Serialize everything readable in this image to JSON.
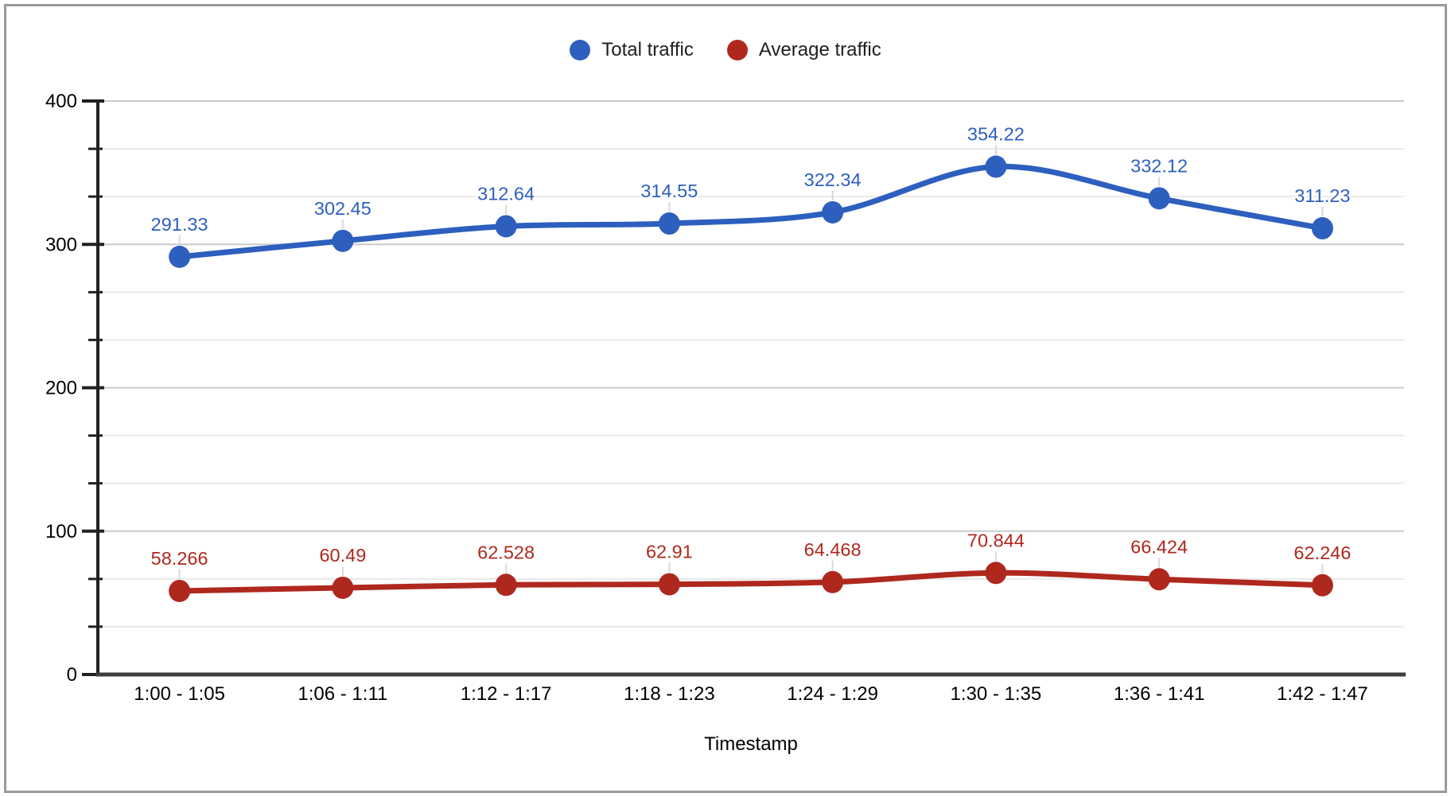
{
  "window": {
    "background": "#ffffff",
    "frame_border_color": "#9a9a9a"
  },
  "chart_data": {
    "type": "line",
    "smooth": true,
    "title": "",
    "xlabel": "Timestamp",
    "ylabel": "",
    "ylim": [
      0,
      400
    ],
    "yticks": [
      0,
      100,
      200,
      300,
      400
    ],
    "minor_gridlines_per_major": 3,
    "grid": true,
    "legend_position": "top",
    "categories": [
      "1:00 - 1:05",
      "1:06 - 1:11",
      "1:12 - 1:17",
      "1:18 - 1:23",
      "1:24 - 1:29",
      "1:30 - 1:35",
      "1:36 - 1:41",
      "1:42 - 1:47"
    ],
    "series": [
      {
        "name": "Total traffic",
        "color": "#2D5FBE",
        "values": [
          291.33,
          302.45,
          312.64,
          314.55,
          322.34,
          354.22,
          332.12,
          311.23
        ],
        "point_labels": [
          "291.33",
          "302.45",
          "312.64",
          "314.55",
          "322.34",
          "354.22",
          "332.12",
          "311.23"
        ]
      },
      {
        "name": "Average traffic",
        "color": "#AF281E",
        "values": [
          58.266,
          60.49,
          62.528,
          62.91,
          64.468,
          70.844,
          66.424,
          62.246
        ],
        "point_labels": [
          "58.266",
          "60.49",
          "62.528",
          "62.91",
          "64.468",
          "70.844",
          "66.424",
          "62.246"
        ]
      }
    ],
    "colors": {
      "major_gridline": "#cbcbcb",
      "minor_gridline": "#e9e9e9",
      "y_axis": "#212121",
      "x_axis": "#3d3d3d",
      "tick": "#212121",
      "axis_label": "#000000",
      "leader_line": "#d9d9d9"
    }
  }
}
